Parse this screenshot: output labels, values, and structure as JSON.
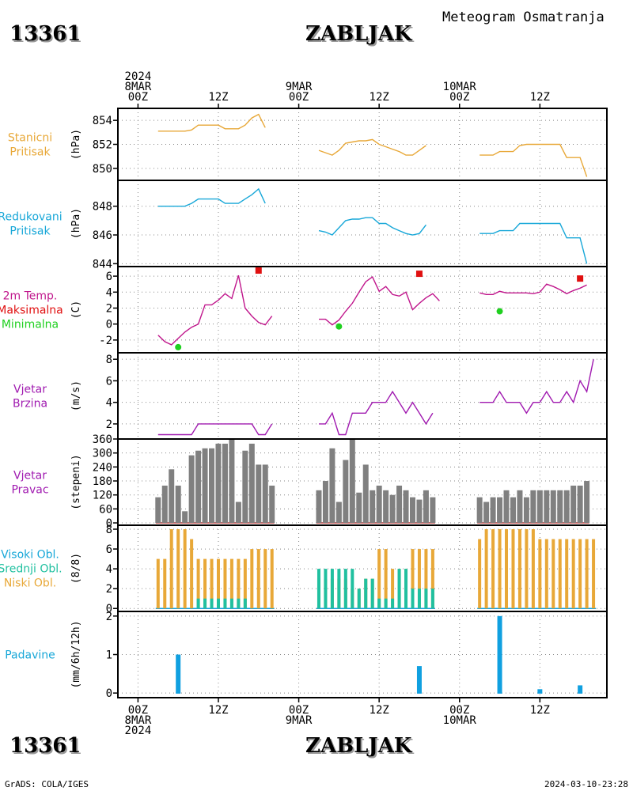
{
  "header": {
    "station_id": "13361",
    "station_name": "ZABLJAK",
    "title": "Meteogram Osmatranja"
  },
  "footer": {
    "left": "GrADS: COLA/IGES",
    "right": "2024-03-10-23:28"
  },
  "time_axis": {
    "ticks": [
      {
        "h": 0,
        "top": [
          "2024",
          "8MAR",
          "00Z"
        ],
        "bottom": [
          "00Z",
          "8MAR",
          "2024"
        ]
      },
      {
        "h": 12,
        "top": [
          "12Z"
        ],
        "bottom": [
          "12Z"
        ]
      },
      {
        "h": 24,
        "top": [
          "9MAR",
          "00Z"
        ],
        "bottom": [
          "00Z",
          "9MAR"
        ]
      },
      {
        "h": 36,
        "top": [
          "12Z"
        ],
        "bottom": [
          "12Z"
        ]
      },
      {
        "h": 48,
        "top": [
          "10MAR",
          "00Z"
        ],
        "bottom": [
          "00Z",
          "10MAR"
        ]
      },
      {
        "h": 60,
        "top": [
          "12Z"
        ],
        "bottom": [
          "12Z"
        ]
      }
    ],
    "range_hours": [
      -3,
      70
    ]
  },
  "colors": {
    "orange": "#e8a838",
    "cyan": "#17a7d8",
    "magenta": "#c0168c",
    "red": "#e01010",
    "green": "#20d020",
    "purple": "#a01ab0",
    "gray": "#808080",
    "teal": "#20c0a0",
    "blue": "#10a0e0"
  },
  "chart_data": [
    {
      "type": "line",
      "id": "stanicni",
      "labels": [
        "Stanicni",
        "Pritisak"
      ],
      "label_color": "orange",
      "ylabel": "(hPa)",
      "ylim": [
        849,
        855
      ],
      "yticks": [
        850,
        852,
        854
      ],
      "series": [
        {
          "color": "orange",
          "segments": [
            {
              "h0": 3,
              "values": [
                853.1,
                853.1,
                853.1,
                853.1,
                853.1,
                853.2,
                853.6,
                853.6,
                853.6,
                853.6,
                853.3,
                853.3,
                853.3,
                853.6,
                854.2,
                854.5,
                853.4
              ]
            },
            {
              "h0": 27,
              "values": [
                851.5,
                851.3,
                851.1,
                851.5,
                852.1,
                852.2,
                852.3,
                852.3,
                852.4,
                852.0,
                851.8,
                851.6,
                851.4,
                851.1,
                851.1,
                851.5,
                851.9
              ]
            },
            {
              "h0": 51,
              "values": [
                851.1,
                851.1,
                851.1,
                851.4,
                851.4,
                851.4,
                851.9,
                852.0,
                852.0,
                852.0,
                852.0,
                852.0,
                852.0,
                850.9,
                850.9,
                850.9,
                849.3
              ]
            }
          ]
        }
      ]
    },
    {
      "type": "line",
      "id": "redukovani",
      "labels": [
        "Redukovani",
        "Pritisak"
      ],
      "label_color": "cyan",
      "ylabel": "(hPa)",
      "ylim": [
        843.8,
        849.8
      ],
      "yticks": [
        844,
        846,
        848
      ],
      "series": [
        {
          "color": "cyan",
          "segments": [
            {
              "h0": 3,
              "values": [
                848.0,
                848.0,
                848.0,
                848.0,
                848.0,
                848.2,
                848.5,
                848.5,
                848.5,
                848.5,
                848.2,
                848.2,
                848.2,
                848.5,
                848.8,
                849.2,
                848.2
              ]
            },
            {
              "h0": 27,
              "values": [
                846.3,
                846.2,
                846.0,
                846.5,
                847.0,
                847.1,
                847.1,
                847.2,
                847.2,
                846.8,
                846.8,
                846.5,
                846.3,
                846.1,
                846.0,
                846.1,
                846.7
              ]
            },
            {
              "h0": 51,
              "values": [
                846.1,
                846.1,
                846.1,
                846.3,
                846.3,
                846.3,
                846.8,
                846.8,
                846.8,
                846.8,
                846.8,
                846.8,
                846.8,
                845.8,
                845.8,
                845.8,
                844.0
              ]
            }
          ]
        }
      ]
    },
    {
      "type": "line",
      "id": "temperatura",
      "labels": [
        "2m Temp.",
        "Maksimalna",
        "Minimalna"
      ],
      "label_colors": [
        "magenta",
        "red",
        "green"
      ],
      "ylabel": "(C)",
      "ylim": [
        -3.6,
        7.2
      ],
      "yticks": [
        -2,
        0,
        2,
        4,
        6
      ],
      "series": [
        {
          "color": "magenta",
          "segments": [
            {
              "h0": 3,
              "values": [
                -1.4,
                -2.2,
                -2.6,
                -1.8,
                -1.0,
                -0.4,
                0.0,
                2.4,
                2.4,
                3.0,
                3.8,
                3.2,
                6.1,
                2.0,
                1.0,
                0.2,
                -0.1,
                1.0
              ]
            },
            {
              "h0": 27,
              "values": [
                0.6,
                0.6,
                -0.1,
                0.5,
                1.6,
                2.6,
                4.0,
                5.3,
                5.9,
                4.1,
                4.7,
                3.7,
                3.5,
                4.0,
                1.8,
                2.6,
                3.3,
                3.8,
                2.9
              ]
            },
            {
              "h0": 51,
              "values": [
                3.9,
                3.7,
                3.7,
                4.1,
                3.9,
                3.9,
                3.9,
                3.9,
                3.8,
                4.0,
                5.0,
                4.7,
                4.3,
                3.8,
                4.2,
                4.5,
                4.9
              ]
            }
          ]
        }
      ],
      "tmax": [
        {
          "h": 18,
          "v": 6.7
        },
        {
          "h": 42,
          "v": 6.3
        },
        {
          "h": 66,
          "v": 5.7
        }
      ],
      "tmin": [
        {
          "h": 6,
          "v": -2.9
        },
        {
          "h": 30,
          "v": -0.3
        },
        {
          "h": 54,
          "v": 1.6
        }
      ]
    },
    {
      "type": "line",
      "id": "vjetar-brzina",
      "labels": [
        "Vjetar",
        "Brzina"
      ],
      "label_color": "purple",
      "ylabel": "(m/s)",
      "ylim": [
        0.6,
        8.6
      ],
      "yticks": [
        2,
        4,
        6,
        8
      ],
      "series": [
        {
          "color": "purple",
          "segments": [
            {
              "h0": 3,
              "values": [
                1,
                1,
                1,
                1,
                1,
                1,
                2,
                2,
                2,
                2,
                2,
                2,
                2,
                2,
                2,
                1,
                1,
                2
              ]
            },
            {
              "h0": 27,
              "values": [
                2,
                2,
                3,
                1,
                1,
                3,
                3,
                3,
                4,
                4,
                4,
                5,
                4,
                3,
                4,
                3,
                2,
                3
              ]
            },
            {
              "h0": 51,
              "values": [
                4,
                4,
                4,
                5,
                4,
                4,
                4,
                3,
                4,
                4,
                5,
                4,
                4,
                5,
                4,
                6,
                5,
                8
              ]
            }
          ]
        }
      ]
    },
    {
      "type": "bar",
      "id": "vjetar-pravac",
      "labels": [
        "Vjetar",
        "Pravac"
      ],
      "label_color": "purple",
      "ylabel": "(stepeni)",
      "ylim": [
        -10,
        360
      ],
      "yticks": [
        0,
        60,
        120,
        180,
        240,
        300,
        360
      ],
      "series": [
        {
          "color": "gray",
          "segments": [
            {
              "h0": 3,
              "values": [
                110,
                160,
                230,
                160,
                50,
                290,
                310,
                320,
                320,
                340,
                340,
                360,
                90,
                310,
                340,
                250,
                250,
                160
              ]
            },
            {
              "h0": 27,
              "values": [
                140,
                180,
                320,
                90,
                270,
                360,
                130,
                250,
                140,
                160,
                140,
                120,
                160,
                140,
                110,
                100,
                140,
                110
              ]
            },
            {
              "h0": 51,
              "values": [
                110,
                90,
                110,
                110,
                140,
                110,
                140,
                110,
                140,
                140,
                140,
                140,
                140,
                140,
                160,
                160,
                180
              ]
            }
          ]
        }
      ]
    },
    {
      "type": "bar",
      "id": "oblacnost",
      "labels": [
        "Visoki Obl.",
        "Srednji Obl.",
        "Niski Obl."
      ],
      "label_colors": [
        "cyan",
        "teal",
        "orange"
      ],
      "ylabel": "(8/8)",
      "ylim": [
        -0.3,
        8.4
      ],
      "yticks": [
        0,
        2,
        4,
        6,
        8
      ],
      "series": [
        {
          "name": "Niski Obl.",
          "color": "orange",
          "segments": [
            {
              "h0": 3,
              "values": [
                5,
                5,
                8,
                8,
                8,
                7,
                5,
                5,
                5,
                5,
                5,
                5,
                5,
                5,
                6,
                6,
                6,
                6
              ]
            },
            {
              "h0": 27,
              "values": [
                3,
                3,
                3,
                3,
                3,
                2,
                2,
                3,
                3,
                6,
                6,
                4,
                4,
                4,
                6,
                6,
                6,
                6
              ]
            },
            {
              "h0": 51,
              "values": [
                7,
                8,
                8,
                8,
                8,
                8,
                8,
                8,
                8,
                7,
                7,
                7,
                7,
                7,
                7,
                7,
                7,
                7
              ]
            }
          ]
        },
        {
          "name": "Srednji Obl.",
          "color": "teal",
          "segments": [
            {
              "h0": 3,
              "values": [
                0,
                0,
                0,
                0,
                0,
                0,
                1,
                1,
                1,
                1,
                1,
                1,
                1,
                1,
                0,
                0,
                0,
                0
              ]
            },
            {
              "h0": 27,
              "values": [
                4,
                4,
                4,
                4,
                4,
                4,
                2,
                3,
                3,
                1,
                1,
                1,
                4,
                4,
                2,
                2,
                2,
                2
              ]
            },
            {
              "h0": 51,
              "values": [
                0,
                0,
                0,
                0,
                0,
                0,
                0,
                0,
                0,
                0,
                0,
                0,
                0,
                0,
                0,
                0,
                0,
                0
              ]
            }
          ]
        }
      ]
    },
    {
      "type": "bar",
      "id": "padavine",
      "labels": [
        "Padavine"
      ],
      "label_color": "cyan",
      "ylabel": "(mm/6h/12h)",
      "ylim": [
        -0.12,
        2.12
      ],
      "yticks": [
        0,
        1,
        2
      ],
      "series": [
        {
          "color": "blue",
          "segments": [
            {
              "h0": 6,
              "values": [
                1.0
              ]
            },
            {
              "h0": 42,
              "values": [
                0.7
              ]
            },
            {
              "h0": 54,
              "values": [
                2.0
              ]
            },
            {
              "h0": 60,
              "values": [
                0.1
              ]
            },
            {
              "h0": 66,
              "values": [
                0.2
              ]
            }
          ]
        }
      ]
    }
  ]
}
